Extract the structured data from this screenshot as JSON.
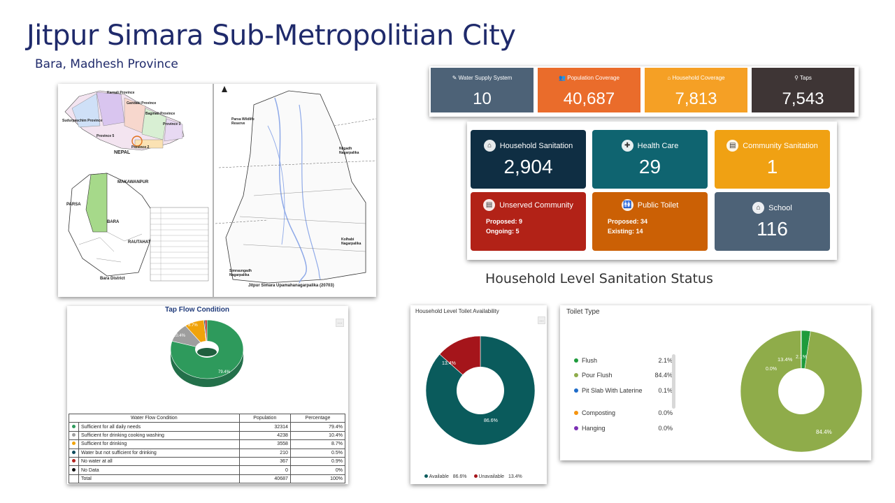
{
  "header": {
    "title": "Jitpur Simara Sub-Metropolitian City",
    "subtitle": "Bara, Madhesh Province"
  },
  "map": {
    "labels": {
      "karnali": "Karnali Province",
      "gandaki": "Gandaki Province",
      "bagmati": "Bagmati Province",
      "sudur": "Sudurpaschim Province",
      "province1": "Province 1",
      "province5": "Province 5",
      "province2": "Province 2",
      "nepal": "NEPAL",
      "makawanpur": "MAKAWANPUR",
      "parsa": "PARSA",
      "bara": "BARA",
      "rautahat": "RAUTAHAT",
      "bara_district": "Bara District",
      "parsa_reserve": "Parsa Wildlife Reserve",
      "nijgadh": "Nijgadh Nagarpalika",
      "kolhabi": "Kolhabi Nagarpalika",
      "simraungadh": "Simraungadh Nagarpalika",
      "footer": "Jitpur Simara Upamahanagarpalika (20703)"
    },
    "colors": {
      "highlight": "#a6d98a",
      "river": "#8ea9e8"
    }
  },
  "stats": [
    {
      "icon": "edit-icon",
      "label": "Water Supply System",
      "value": "10",
      "color": "#4d6277"
    },
    {
      "icon": "users-icon",
      "label": "Population Coverage",
      "value": "40,687",
      "color": "#ea6c2b"
    },
    {
      "icon": "home-icon",
      "label": "Household Coverage",
      "value": "7,813",
      "color": "#f5a025"
    },
    {
      "icon": "tap-icon",
      "label": "Taps",
      "value": "7,543",
      "color": "#3e3535"
    }
  ],
  "sanitation": {
    "household": {
      "icon": "house-icon",
      "label": "Household Sanitation",
      "value": "2,904",
      "color": "#0f2e43"
    },
    "health": {
      "icon": "health-icon",
      "label": "Health Care",
      "value": "29",
      "color": "#0f6470"
    },
    "community": {
      "icon": "clipboard-icon",
      "label": "Community Sanitation",
      "value": "1",
      "color": "#f0a113"
    },
    "unserved": {
      "icon": "clipboard-icon",
      "label": "Unserved Community",
      "proposed": "Proposed: 9",
      "ongoing": "Ongoing: 5",
      "color": "#b22217"
    },
    "public_toilet": {
      "icon": "toilet-icon",
      "label": "Public Toilet",
      "proposed": "Proposed: 34",
      "existing": "Existing: 14",
      "color": "#cb6005"
    },
    "school": {
      "icon": "school-icon",
      "label": "School",
      "value": "116",
      "color": "#4d6277"
    }
  },
  "household_status_heading": "Household Level Sanitation Status",
  "tap_flow": {
    "title": "Tap Flow Condition",
    "table": {
      "headers": [
        "Water Flow Condition",
        "Population",
        "Percentage"
      ],
      "rows": [
        {
          "color": "#2e9a5c",
          "label": "Sufficient for all daily needs",
          "population": "32314",
          "percentage": "79.4%"
        },
        {
          "color": "#9e9e9e",
          "label": "Sufficient for drinking cooking washing",
          "population": "4238",
          "percentage": "10.4%"
        },
        {
          "color": "#f0a30a",
          "label": "Sufficient for drinking",
          "population": "3558",
          "percentage": "8.7%"
        },
        {
          "color": "#0d4a5c",
          "label": "Water but not sufficient for drinking",
          "population": "210",
          "percentage": "0.5%"
        },
        {
          "color": "#b3201c",
          "label": "No water at all",
          "population": "367",
          "percentage": "0.9%"
        },
        {
          "color": "#111111",
          "label": "No Data",
          "population": "0",
          "percentage": "0%"
        }
      ],
      "total": {
        "label": "Total",
        "population": "40687",
        "percentage": "100%"
      }
    },
    "labels": {
      "main": "79.4%",
      "second": "10.4%",
      "third": "8.7%"
    }
  },
  "chart_data": [
    {
      "type": "pie",
      "title": "Tap Flow Condition",
      "categories": [
        "Sufficient for all daily needs",
        "Sufficient for drinking cooking washing",
        "Sufficient for drinking",
        "Water but not sufficient for drinking",
        "No water at all",
        "No Data"
      ],
      "values": [
        79.4,
        10.4,
        8.7,
        0.5,
        0.9,
        0
      ],
      "colors": [
        "#2e9a5c",
        "#9e9e9e",
        "#f0a30a",
        "#0d4a5c",
        "#b3201c",
        "#111111"
      ]
    },
    {
      "type": "pie",
      "title": "Household Level Toilet Availability",
      "categories": [
        "Available",
        "Unavailable"
      ],
      "values": [
        86.6,
        13.4
      ],
      "colors": [
        "#0a5b5c",
        "#a5151b"
      ],
      "legend": "bottom"
    },
    {
      "type": "pie",
      "title": "Toilet Type",
      "categories": [
        "Flush",
        "Pour Flush",
        "Pit Slab With Laterine",
        "Composting",
        "Hanging"
      ],
      "values": [
        2.1,
        84.4,
        0.1,
        0.0,
        0.0
      ],
      "other_labels": [
        "13.4%",
        "0.0%"
      ],
      "colors": [
        "#1e9b3c",
        "#8fac4a",
        "#1f6cc9",
        "#f5940f",
        "#7b2fb4"
      ],
      "legend": "left"
    }
  ],
  "availability": {
    "title": "Household Level Toilet Availability",
    "labels": {
      "available_pct": "86.6%",
      "unavailable_pct": "13.4%"
    },
    "legend": [
      {
        "color": "#0a5b5c",
        "name": "Available",
        "pct": "86.6%"
      },
      {
        "color": "#a5151b",
        "name": "Unavailable",
        "pct": "13.4%"
      }
    ]
  },
  "toilet_type": {
    "title": "Toilet Type",
    "legend": [
      {
        "color": "#1e9b3c",
        "name": "Flush",
        "pct": "2.1%"
      },
      {
        "color": "#8fac4a",
        "name": "Pour Flush",
        "pct": "84.4%"
      },
      {
        "color": "#1f6cc9",
        "name": "Pit Slab With Laterine",
        "pct": "0.1%"
      },
      {
        "color": "#f5940f",
        "name": "Composting",
        "pct": "0.0%"
      },
      {
        "color": "#7b2fb4",
        "name": "Hanging",
        "pct": "0.0%"
      }
    ],
    "labels": {
      "pour": "84.4%",
      "other": "13.4%",
      "flush": "2.1%",
      "small": "0.0%"
    }
  }
}
